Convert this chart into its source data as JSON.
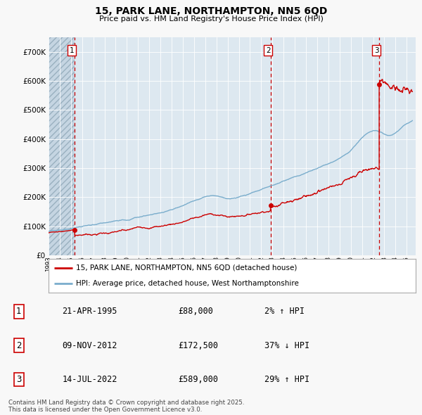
{
  "title": "15, PARK LANE, NORTHAMPTON, NN5 6QD",
  "subtitle": "Price paid vs. HM Land Registry's House Price Index (HPI)",
  "fig_bg_color": "#f8f8f8",
  "plot_bg_color": "#dde8f0",
  "grid_color": "#ffffff",
  "red_line_color": "#cc0000",
  "blue_line_color": "#7aadcc",
  "dashed_line_color": "#cc0000",
  "legend_label_red": "15, PARK LANE, NORTHAMPTON, NN5 6QD (detached house)",
  "legend_label_blue": "HPI: Average price, detached house, West Northamptonshire",
  "sales": [
    {
      "num": 1,
      "price": 88000,
      "x_year": 1995.31
    },
    {
      "num": 2,
      "price": 172500,
      "x_year": 2012.86
    },
    {
      "num": 3,
      "price": 589000,
      "x_year": 2022.54
    }
  ],
  "table_rows": [
    {
      "num": 1,
      "date_str": "21-APR-1995",
      "price_str": "£88,000",
      "pct_str": "2% ↑ HPI"
    },
    {
      "num": 2,
      "date_str": "09-NOV-2012",
      "price_str": "£172,500",
      "pct_str": "37% ↓ HPI"
    },
    {
      "num": 3,
      "date_str": "14-JUL-2022",
      "price_str": "£589,000",
      "pct_str": "29% ↑ HPI"
    }
  ],
  "footnote": "Contains HM Land Registry data © Crown copyright and database right 2025.\nThis data is licensed under the Open Government Licence v3.0.",
  "ylim": [
    0,
    750000
  ],
  "xlim_start": 1993.0,
  "xlim_end": 2025.8,
  "hatch_end_year": 1995.31
}
